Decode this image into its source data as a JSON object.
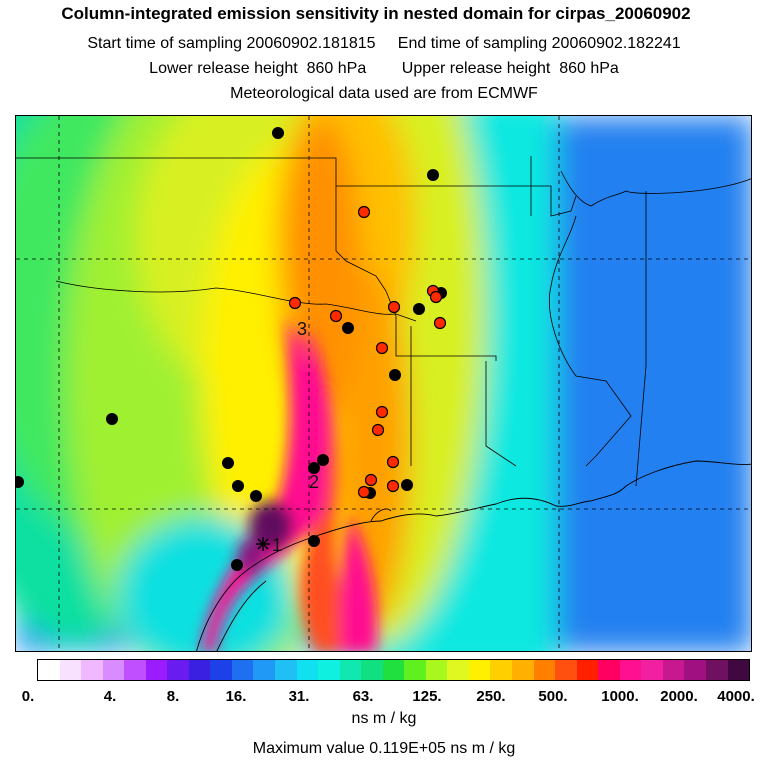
{
  "header": {
    "title": "Column-integrated emission sensitivity in nested domain for cirpas_20060902",
    "sampling_start_label": "Start time of sampling",
    "sampling_start": "20060902.181815",
    "sampling_end_label": "End time of sampling",
    "sampling_end": "20060902.182241",
    "lower_release_label": "Lower release height",
    "lower_release": "860 hPa",
    "upper_release_label": "Upper release height",
    "upper_release": "860 hPa",
    "met_data": "Meteorological data used are from ECMWF"
  },
  "map": {
    "trajectory_labels": [
      "1",
      "2",
      "3"
    ],
    "release_marker_icon": "asterisk-icon",
    "cluster_marker_colors": {
      "black": "#000000",
      "red": "#ff2a00"
    }
  },
  "legend": {
    "tick_labels": [
      "0.",
      "4.",
      "8.",
      "16.",
      "31.",
      "63.",
      "125.",
      "250.",
      "500.",
      "1000.",
      "2000.",
      "4000."
    ],
    "colors": [
      "#ffffff",
      "#f8e0ff",
      "#f0b8ff",
      "#d98cff",
      "#c050ff",
      "#9a1cff",
      "#6a1cf0",
      "#3a20e0",
      "#1e40e8",
      "#1e70f0",
      "#2098f5",
      "#20c0f5",
      "#10e0f0",
      "#10f0e0",
      "#10e8b0",
      "#10e080",
      "#20e040",
      "#60f020",
      "#a8f820",
      "#e0f820",
      "#fff000",
      "#ffd000",
      "#ffb000",
      "#ff8000",
      "#ff5010",
      "#ff2000",
      "#ff0060",
      "#ff1090",
      "#f020a0",
      "#c81890",
      "#a01080",
      "#701060",
      "#400840"
    ],
    "unit": "ns m / kg",
    "maximum_label": "Maximum value",
    "maximum_value": "0.119E+05 ns m / kg"
  }
}
